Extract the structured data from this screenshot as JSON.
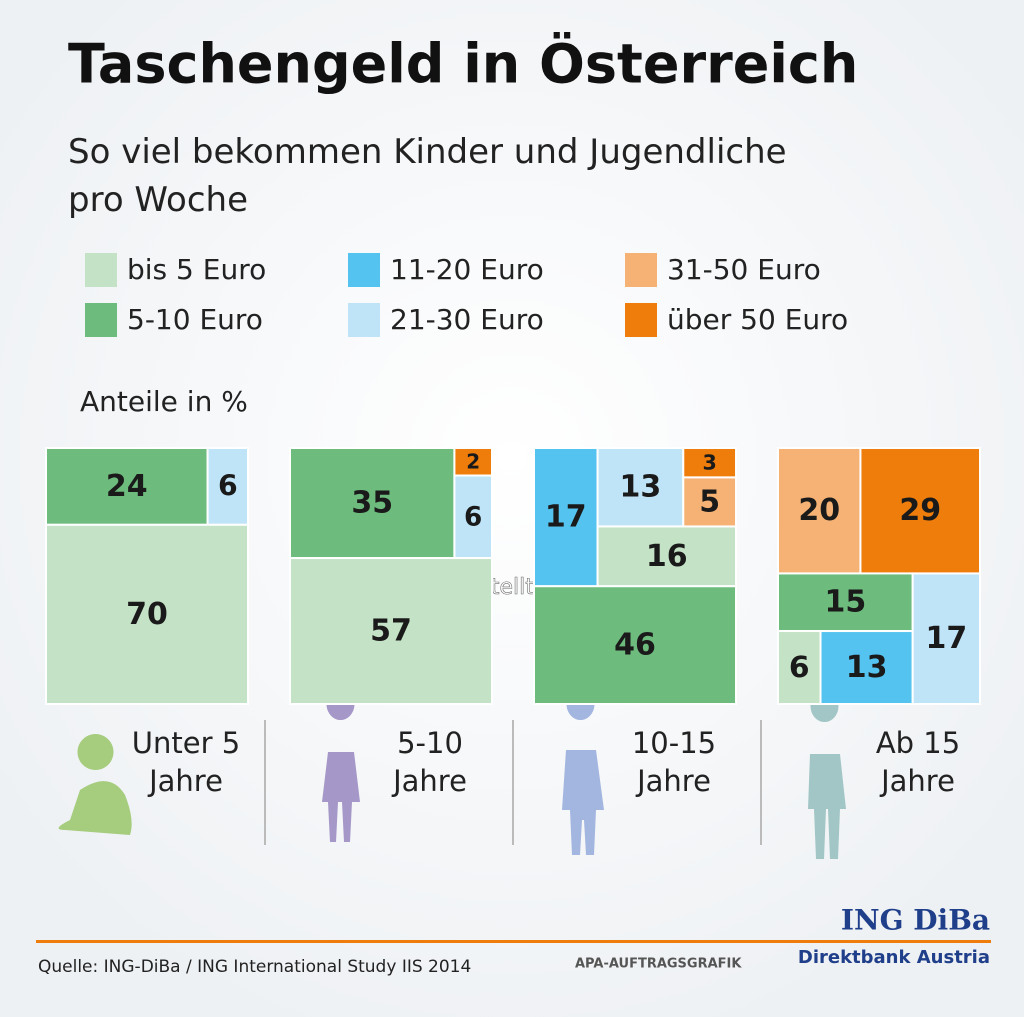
{
  "chart_data": {
    "type": "treemap",
    "title": "Taschengeld in Österreich",
    "subtitle": "So viel bekommen Kinder und Jugendliche pro Woche",
    "unit_label": "Anteile in %",
    "series": [
      {
        "name": "bis 5 Euro",
        "color": "#c4e2c5"
      },
      {
        "name": "5-10 Euro",
        "color": "#6dbb7d"
      },
      {
        "name": "11-20 Euro",
        "color": "#55c3ef"
      },
      {
        "name": "21-30 Euro",
        "color": "#bfe4f8"
      },
      {
        "name": "31-50 Euro",
        "color": "#f5b274"
      },
      {
        "name": "über 50 Euro",
        "color": "#ef7d0b"
      }
    ],
    "groups": [
      {
        "label": "Unter 5 Jahre",
        "values": [
          70,
          24,
          null,
          6,
          null,
          null
        ]
      },
      {
        "label": "5-10 Jahre",
        "values": [
          57,
          35,
          null,
          6,
          null,
          2
        ]
      },
      {
        "label": "10-15 Jahre",
        "values": [
          16,
          46,
          17,
          13,
          5,
          3
        ]
      },
      {
        "label": "Ab 15 Jahre",
        "values": [
          6,
          15,
          13,
          17,
          20,
          29
        ]
      }
    ],
    "watermark": "zur Verfügung gestellt für photaq.com",
    "source": "Quelle: ING-DiBa / ING International Study IIS 2014",
    "credit": "APA-AUFTRAGSGRAFIK",
    "brand": "ING DiBa",
    "brand_sub": "Direktbank Austria"
  }
}
